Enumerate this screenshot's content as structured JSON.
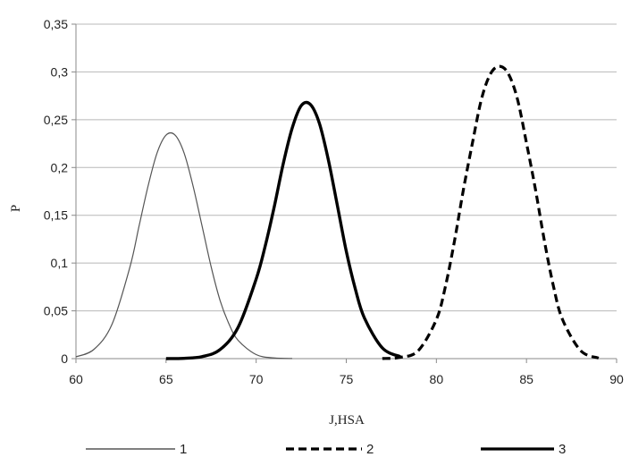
{
  "chart_data": {
    "type": "line",
    "title": "",
    "xlabel": "J,HSA",
    "ylabel": "P",
    "xlim": [
      60,
      90
    ],
    "ylim": [
      0,
      0.35
    ],
    "x_ticks": [
      60,
      65,
      70,
      75,
      80,
      85,
      90
    ],
    "y_ticks": [
      0,
      0.05,
      0.1,
      0.15,
      0.2,
      0.25,
      0.3,
      0.35
    ],
    "x_tick_labels": [
      "60",
      "65",
      "70",
      "75",
      "80",
      "85",
      "90"
    ],
    "y_tick_labels": [
      "0",
      "0,05",
      "0,1",
      "0,15",
      "0,2",
      "0,25",
      "0,3",
      "0,35"
    ],
    "grid": {
      "horizontal": true,
      "vertical": false
    },
    "legend_position": "bottom",
    "series": [
      {
        "name": "1",
        "style": "thin-solid",
        "color": "#555555",
        "x": [
          60,
          61,
          62,
          63,
          63.5,
          64,
          64.5,
          65,
          65.5,
          66,
          66.5,
          67,
          67.5,
          68,
          68.5,
          69,
          70,
          71,
          72
        ],
        "y": [
          0.0019,
          0.0097,
          0.0359,
          0.0962,
          0.1386,
          0.1805,
          0.2152,
          0.2339,
          0.2339,
          0.2152,
          0.1805,
          0.1386,
          0.0962,
          0.0607,
          0.0359,
          0.0191,
          0.0042,
          0.0007,
          0.0001
        ]
      },
      {
        "name": "2",
        "style": "thick-dashed",
        "color": "#000000",
        "x": [
          77,
          78,
          79,
          80,
          80.5,
          81,
          81.5,
          82,
          82.5,
          83,
          83.5,
          84,
          84.5,
          85,
          85.5,
          86,
          86.5,
          87,
          88,
          89
        ],
        "y": [
          0.0001,
          0.0013,
          0.0085,
          0.0409,
          0.0754,
          0.1226,
          0.1768,
          0.2256,
          0.2714,
          0.2979,
          0.3059,
          0.2979,
          0.2714,
          0.2256,
          0.1768,
          0.1226,
          0.0754,
          0.0409,
          0.0085,
          0.0005
        ]
      },
      {
        "name": "3",
        "style": "thick-solid",
        "color": "#000000",
        "x": [
          65,
          66,
          67,
          68,
          69,
          70,
          70.5,
          71,
          71.5,
          72,
          72.5,
          73,
          73.5,
          74,
          74.5,
          75,
          75.5,
          76,
          77,
          78
        ],
        "y": [
          0.0,
          0.0003,
          0.0021,
          0.0095,
          0.0328,
          0.0833,
          0.1177,
          0.1586,
          0.2038,
          0.2413,
          0.2647,
          0.2661,
          0.2467,
          0.2085,
          0.1608,
          0.1124,
          0.0731,
          0.0428,
          0.0112,
          0.0021
        ]
      }
    ]
  }
}
